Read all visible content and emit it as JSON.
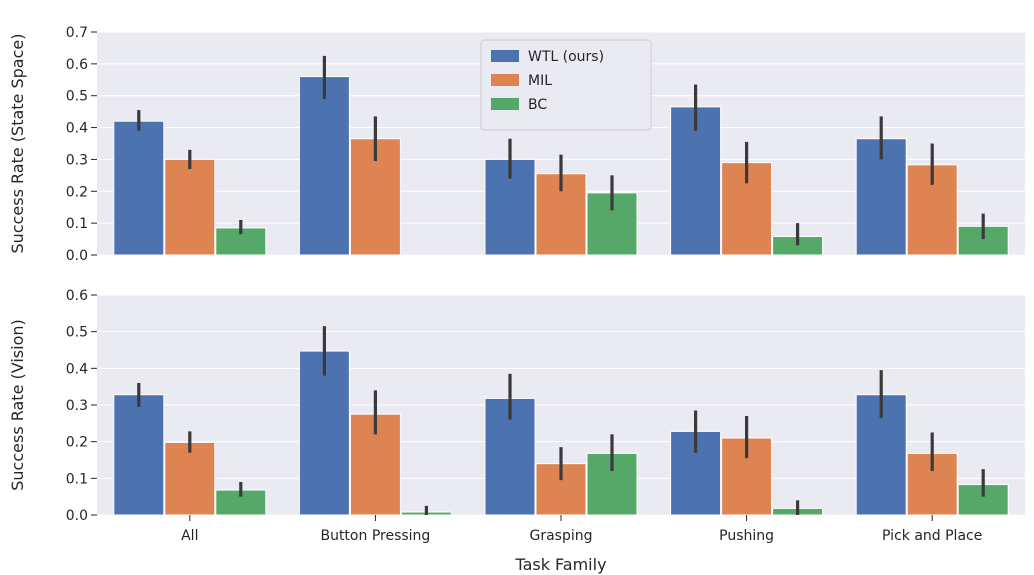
{
  "chart_data": [
    {
      "type": "bar",
      "ylabel": "Success Rate (State Space)",
      "xlabel": "",
      "ylim": [
        0,
        0.7
      ],
      "yticks": [
        "0.0",
        "0.1",
        "0.2",
        "0.3",
        "0.4",
        "0.5",
        "0.6",
        "0.7"
      ],
      "grid": true,
      "legend_position": "top-center",
      "categories": [
        "All",
        "Button Pressing",
        "Grasping",
        "Pushing",
        "Pick and Place"
      ],
      "series": [
        {
          "name": "WTL (ours)",
          "values": [
            0.42,
            0.56,
            0.3,
            0.465,
            0.365
          ],
          "error_low": [
            0.39,
            0.49,
            0.24,
            0.39,
            0.3
          ],
          "error_high": [
            0.455,
            0.625,
            0.365,
            0.535,
            0.435
          ]
        },
        {
          "name": "MIL",
          "values": [
            0.3,
            0.365,
            0.255,
            0.29,
            0.283
          ],
          "error_low": [
            0.27,
            0.295,
            0.2,
            0.225,
            0.22
          ],
          "error_high": [
            0.33,
            0.435,
            0.315,
            0.355,
            0.35
          ]
        },
        {
          "name": "BC",
          "values": [
            0.085,
            0.0,
            0.195,
            0.058,
            0.09
          ],
          "error_low": [
            0.065,
            0.0,
            0.14,
            0.03,
            0.05
          ],
          "error_high": [
            0.11,
            0.0,
            0.25,
            0.1,
            0.13
          ]
        }
      ]
    },
    {
      "type": "bar",
      "ylabel": "Success Rate (Vision)",
      "xlabel": "Task Family",
      "ylim": [
        0,
        0.6
      ],
      "yticks": [
        "0.0",
        "0.1",
        "0.2",
        "0.3",
        "0.4",
        "0.5",
        "0.6"
      ],
      "grid": true,
      "categories": [
        "All",
        "Button Pressing",
        "Grasping",
        "Pushing",
        "Pick and Place"
      ],
      "series": [
        {
          "name": "WTL (ours)",
          "values": [
            0.328,
            0.447,
            0.318,
            0.228,
            0.328
          ],
          "error_low": [
            0.295,
            0.38,
            0.26,
            0.17,
            0.265
          ],
          "error_high": [
            0.36,
            0.515,
            0.385,
            0.285,
            0.395
          ]
        },
        {
          "name": "MIL",
          "values": [
            0.198,
            0.275,
            0.14,
            0.21,
            0.168
          ],
          "error_low": [
            0.17,
            0.22,
            0.095,
            0.155,
            0.12
          ],
          "error_high": [
            0.228,
            0.34,
            0.185,
            0.27,
            0.225
          ]
        },
        {
          "name": "BC",
          "values": [
            0.068,
            0.008,
            0.168,
            0.018,
            0.083
          ],
          "error_low": [
            0.05,
            0.0,
            0.12,
            0.0,
            0.05
          ],
          "error_high": [
            0.09,
            0.025,
            0.22,
            0.04,
            0.125
          ]
        }
      ]
    }
  ],
  "colors": {
    "series": [
      "#4c72b0",
      "#dd8452",
      "#55a868"
    ],
    "plot_background": "#eaeaf2",
    "grid": "#ffffff",
    "error_bar": "#3a3a3a",
    "text": "#262626"
  }
}
